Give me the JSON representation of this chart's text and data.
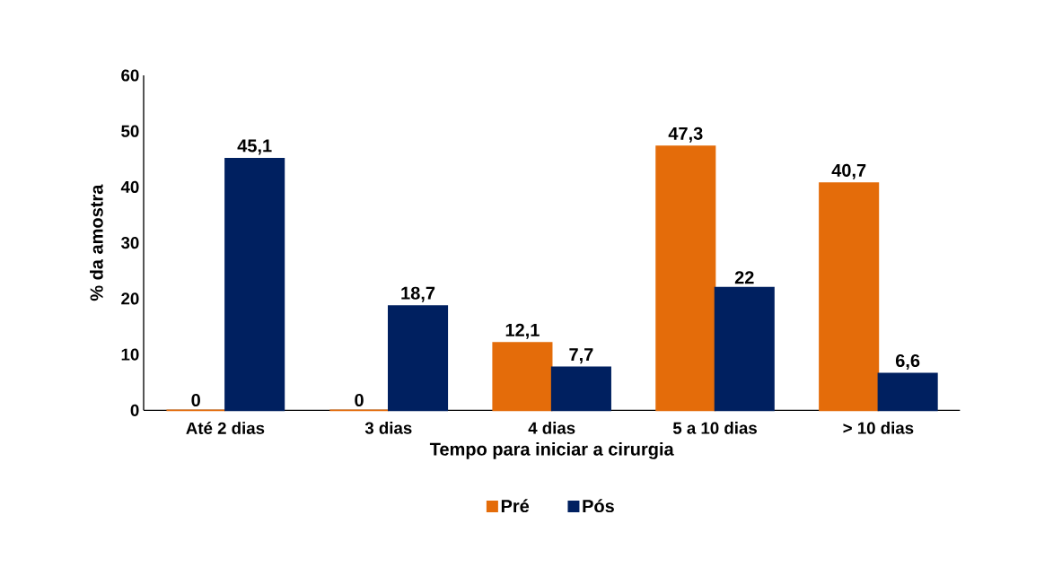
{
  "chart_data": {
    "type": "bar",
    "xlabel": "Tempo para iniciar a cirurgia",
    "ylabel": "% da amostra",
    "categories": [
      "Até 2 dias",
      "3 dias",
      "4 dias",
      "5 a 10 dias",
      "> 10 dias"
    ],
    "series": [
      {
        "name": "Pré",
        "color": "#e46c0a",
        "values": [
          0,
          0,
          12.1,
          47.3,
          40.7
        ],
        "value_labels": [
          "0",
          "0",
          "12,1",
          "47,3",
          "40,7"
        ]
      },
      {
        "name": "Pós",
        "color": "#002060",
        "values": [
          45.1,
          18.7,
          7.7,
          22,
          6.6
        ],
        "value_labels": [
          "45,1",
          "18,7",
          "7,7",
          "22",
          "6,6"
        ]
      }
    ],
    "ylim": [
      0,
      60
    ],
    "yticks": [
      0,
      10,
      20,
      30,
      40,
      50,
      60
    ],
    "legend": "bottom"
  }
}
